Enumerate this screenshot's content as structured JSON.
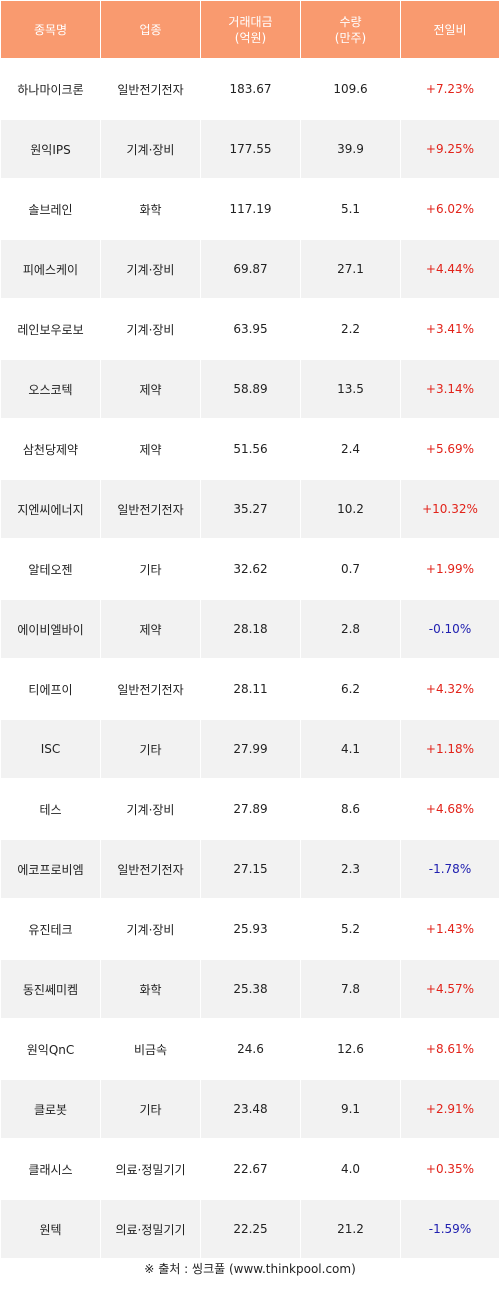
{
  "table": {
    "headers": [
      {
        "line1": "종목명",
        "line2": ""
      },
      {
        "line1": "업종",
        "line2": ""
      },
      {
        "line1": "거래대금",
        "line2": "(억원)"
      },
      {
        "line1": "수량",
        "line2": "(만주)"
      },
      {
        "line1": "전일비",
        "line2": ""
      }
    ],
    "rows": [
      {
        "name": "하나마이크론",
        "sector": "일반전기전자",
        "amount": "183.67",
        "volume": "109.6",
        "change": "+7.23%",
        "direction": "up"
      },
      {
        "name": "원익IPS",
        "sector": "기계·장비",
        "amount": "177.55",
        "volume": "39.9",
        "change": "+9.25%",
        "direction": "up"
      },
      {
        "name": "솔브레인",
        "sector": "화학",
        "amount": "117.19",
        "volume": "5.1",
        "change": "+6.02%",
        "direction": "up"
      },
      {
        "name": "피에스케이",
        "sector": "기계·장비",
        "amount": "69.87",
        "volume": "27.1",
        "change": "+4.44%",
        "direction": "up"
      },
      {
        "name": "레인보우로보",
        "sector": "기계·장비",
        "amount": "63.95",
        "volume": "2.2",
        "change": "+3.41%",
        "direction": "up"
      },
      {
        "name": "오스코텍",
        "sector": "제약",
        "amount": "58.89",
        "volume": "13.5",
        "change": "+3.14%",
        "direction": "up"
      },
      {
        "name": "삼천당제약",
        "sector": "제약",
        "amount": "51.56",
        "volume": "2.4",
        "change": "+5.69%",
        "direction": "up"
      },
      {
        "name": "지엔씨에너지",
        "sector": "일반전기전자",
        "amount": "35.27",
        "volume": "10.2",
        "change": "+10.32%",
        "direction": "up"
      },
      {
        "name": "알테오젠",
        "sector": "기타",
        "amount": "32.62",
        "volume": "0.7",
        "change": "+1.99%",
        "direction": "up"
      },
      {
        "name": "에이비엘바이",
        "sector": "제약",
        "amount": "28.18",
        "volume": "2.8",
        "change": "-0.10%",
        "direction": "down"
      },
      {
        "name": "티에프이",
        "sector": "일반전기전자",
        "amount": "28.11",
        "volume": "6.2",
        "change": "+4.32%",
        "direction": "up"
      },
      {
        "name": "ISC",
        "sector": "기타",
        "amount": "27.99",
        "volume": "4.1",
        "change": "+1.18%",
        "direction": "up"
      },
      {
        "name": "테스",
        "sector": "기계·장비",
        "amount": "27.89",
        "volume": "8.6",
        "change": "+4.68%",
        "direction": "up"
      },
      {
        "name": "에코프로비엠",
        "sector": "일반전기전자",
        "amount": "27.15",
        "volume": "2.3",
        "change": "-1.78%",
        "direction": "down"
      },
      {
        "name": "유진테크",
        "sector": "기계·장비",
        "amount": "25.93",
        "volume": "5.2",
        "change": "+1.43%",
        "direction": "up"
      },
      {
        "name": "동진쎄미켐",
        "sector": "화학",
        "amount": "25.38",
        "volume": "7.8",
        "change": "+4.57%",
        "direction": "up"
      },
      {
        "name": "원익QnC",
        "sector": "비금속",
        "amount": "24.6",
        "volume": "12.6",
        "change": "+8.61%",
        "direction": "up"
      },
      {
        "name": "클로봇",
        "sector": "기타",
        "amount": "23.48",
        "volume": "9.1",
        "change": "+2.91%",
        "direction": "up"
      },
      {
        "name": "클래시스",
        "sector": "의료·정밀기기",
        "amount": "22.67",
        "volume": "4.0",
        "change": "+0.35%",
        "direction": "up"
      },
      {
        "name": "원텍",
        "sector": "의료·정밀기기",
        "amount": "22.25",
        "volume": "21.2",
        "change": "-1.59%",
        "direction": "down"
      }
    ]
  },
  "source": {
    "mark": "※",
    "text": "출처 : 씽크풀 (www.thinkpool.com)"
  },
  "colors": {
    "header_bg": "#f99a6f",
    "up": "#e2231a",
    "down": "#2020b0",
    "row_alt": "#f2f2f2"
  }
}
